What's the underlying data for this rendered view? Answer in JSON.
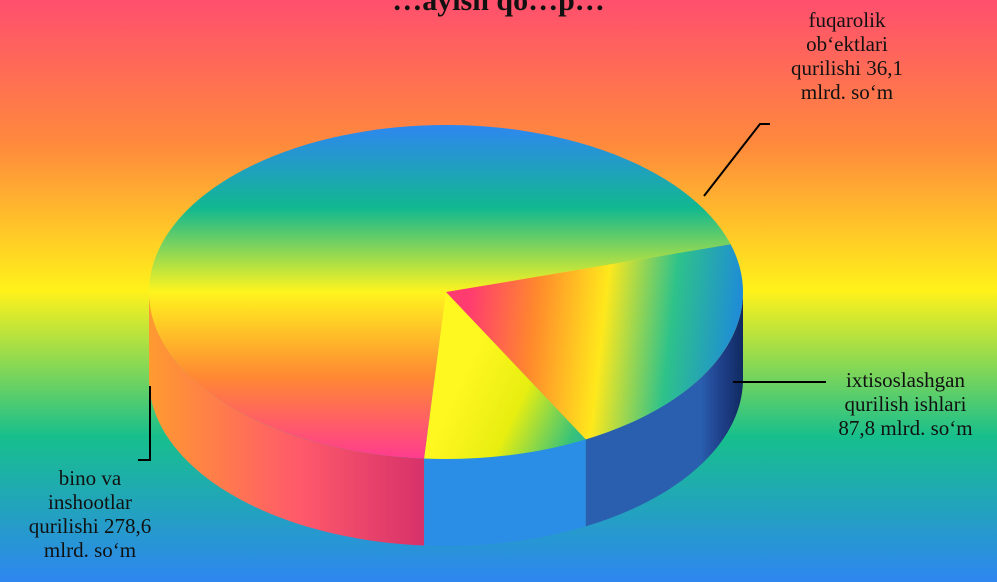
{
  "chart_data": {
    "type": "pie",
    "title": "…ayish qo…p…",
    "categories": [
      "bino va inshootlar qurilishi",
      "fuqarolik ob‘ektlari qurilishi",
      "ixtisoslashgan qurilish ishlari"
    ],
    "values": [
      278.6,
      36.1,
      87.8
    ],
    "unit": "mlrd. so‘m",
    "data_labels": [
      [
        "bino va",
        "inshootlar",
        "qurilishi  278,6",
        "mlrd. so‘m"
      ],
      [
        "fuqarolik",
        "ob‘ektlari",
        "qurilishi 36,1",
        "mlrd. so‘m"
      ],
      [
        "ixtisoslashgan",
        "qurilish ishlari",
        "87,8 mlrd. so‘m"
      ]
    ],
    "style": "3d",
    "legend": "none",
    "background_colors": [
      "#ff4f6e",
      "#ff8a3c",
      "#fff21a",
      "#17bf8c",
      "#2e86f0"
    ],
    "slice_colors": [
      "#ff3b8f",
      "#fff31c",
      "#ff6a2e"
    ]
  }
}
